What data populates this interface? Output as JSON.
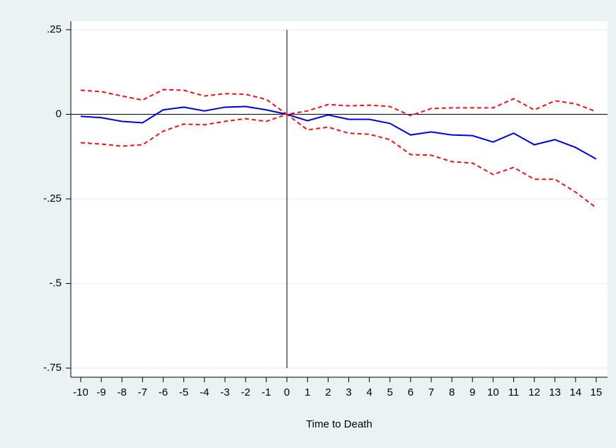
{
  "chart_data": {
    "type": "line",
    "x": [
      -10,
      -9,
      -8,
      -7,
      -6,
      -5,
      -4,
      -3,
      -2,
      -1,
      0,
      1,
      2,
      3,
      4,
      5,
      6,
      7,
      8,
      9,
      10,
      11,
      12,
      13,
      14,
      15
    ],
    "series": [
      {
        "color": "#0000dd",
        "style": "solid",
        "values": [
          -0.006,
          -0.01,
          -0.021,
          -0.025,
          0.013,
          0.021,
          0.01,
          0.021,
          0.023,
          0.013,
          0,
          -0.019,
          -0.002,
          -0.015,
          -0.015,
          -0.027,
          -0.061,
          -0.052,
          -0.061,
          -0.063,
          -0.082,
          -0.056,
          -0.09,
          -0.075,
          -0.098,
          -0.132
        ]
      },
      {
        "color": "#e8141c",
        "style": "dashed",
        "values": [
          0.071,
          0.067,
          0.054,
          0.042,
          0.073,
          0.071,
          0.054,
          0.061,
          0.059,
          0.044,
          0,
          0.01,
          0.029,
          0.025,
          0.027,
          0.023,
          -0.004,
          0.017,
          0.019,
          0.019,
          0.019,
          0.046,
          0.013,
          0.04,
          0.031,
          0.008
        ]
      },
      {
        "color": "#e8141c",
        "style": "dashed",
        "values": [
          -0.084,
          -0.088,
          -0.094,
          -0.09,
          -0.05,
          -0.029,
          -0.031,
          -0.021,
          -0.013,
          -0.021,
          0,
          -0.046,
          -0.038,
          -0.056,
          -0.059,
          -0.075,
          -0.119,
          -0.121,
          -0.14,
          -0.144,
          -0.178,
          -0.157,
          -0.192,
          -0.192,
          -0.23,
          -0.276
        ]
      }
    ],
    "xlabel": "Time to Death",
    "xlim": [
      -10.48,
      15.55
    ],
    "ylim": [
      -0.777,
      0.275
    ],
    "xticks": [
      -10,
      -9,
      -8,
      -7,
      -6,
      -5,
      -4,
      -3,
      -2,
      -1,
      0,
      1,
      2,
      3,
      4,
      5,
      6,
      7,
      8,
      9,
      10,
      11,
      12,
      13,
      14,
      15
    ],
    "yticks": [
      {
        "value": 0.25,
        "label": ".25"
      },
      0,
      {
        "value": -0.25,
        "label": "-.25"
      },
      {
        "value": -0.5,
        "label": "-.5"
      },
      {
        "value": -0.75,
        "label": "-.75"
      }
    ],
    "grid": true,
    "reference_lines": {
      "x": 0,
      "y": 0
    }
  }
}
